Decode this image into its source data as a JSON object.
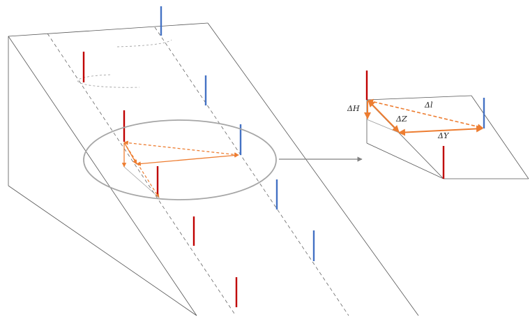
{
  "labels": {
    "delta_h": "ΔH",
    "delta_l": "Δl",
    "delta_z": "ΔZ",
    "delta_y": "ΔY"
  },
  "colors": {
    "outline": "#555555",
    "dashed_line": "#666666",
    "ellipse": "#a6a6a6",
    "pole_red": "#c00000",
    "pole_blue": "#4472c4",
    "vector_orange": "#ed7d31",
    "callout_arrow": "#808080"
  }
}
